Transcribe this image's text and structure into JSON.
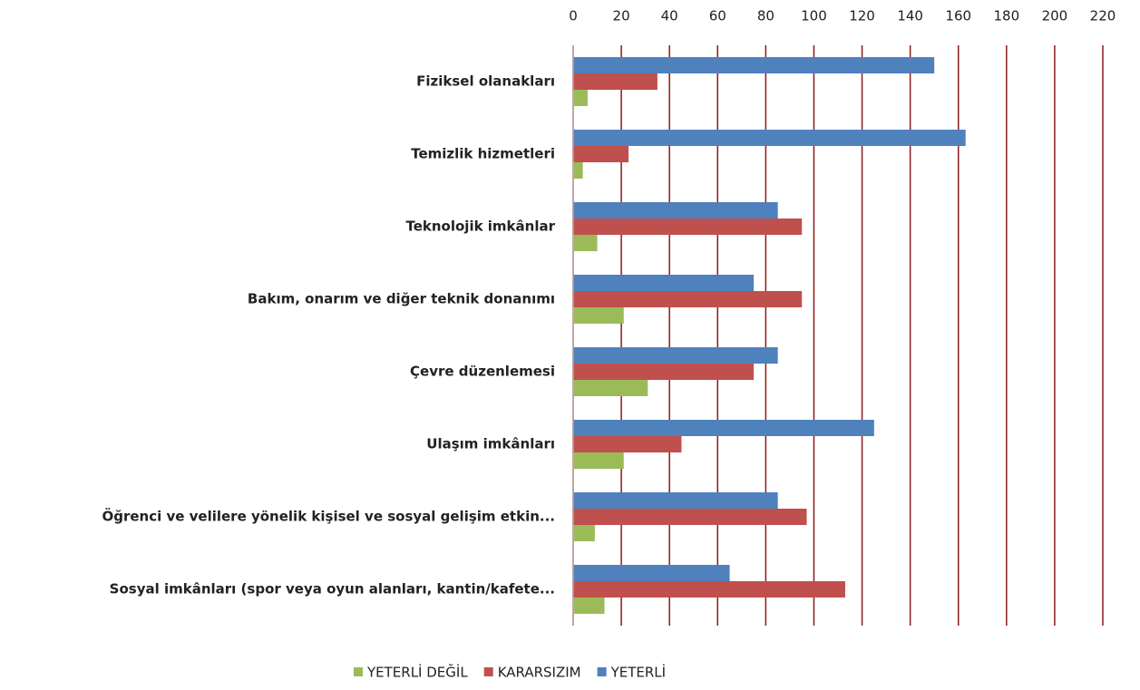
{
  "chart_data": {
    "type": "bar",
    "orientation": "horizontal",
    "categories": [
      "Fiziksel olanakları",
      "Temizlik hizmetleri",
      "Teknolojik imkânlar",
      "Bakım, onarım ve diğer teknik donanımı",
      "Çevre düzenlemesi",
      "Ulaşım imkânları",
      "Öğrenci ve velilere yönelik kişisel ve sosyal gelişim etkin...",
      "Sosyal imkânları (spor veya oyun alanları, kantin/kafete..."
    ],
    "series": [
      {
        "name": "YETERLİ DEĞİL",
        "color": "#9bbb59",
        "values": [
          6,
          4,
          10,
          21,
          31,
          21,
          9,
          13
        ]
      },
      {
        "name": "KARARSIZIM",
        "color": "#c0504d",
        "values": [
          35,
          23,
          95,
          95,
          75,
          45,
          97,
          113
        ]
      },
      {
        "name": "YETERLİ",
        "color": "#4f81bd",
        "values": [
          150,
          163,
          85,
          75,
          85,
          125,
          85,
          65
        ]
      }
    ],
    "xlim": [
      0,
      220
    ],
    "xticks": [
      0,
      20,
      40,
      60,
      80,
      100,
      120,
      140,
      160,
      180,
      200,
      220
    ],
    "grid": true,
    "grid_color": "#8b1a1a",
    "legend": "bottom"
  }
}
